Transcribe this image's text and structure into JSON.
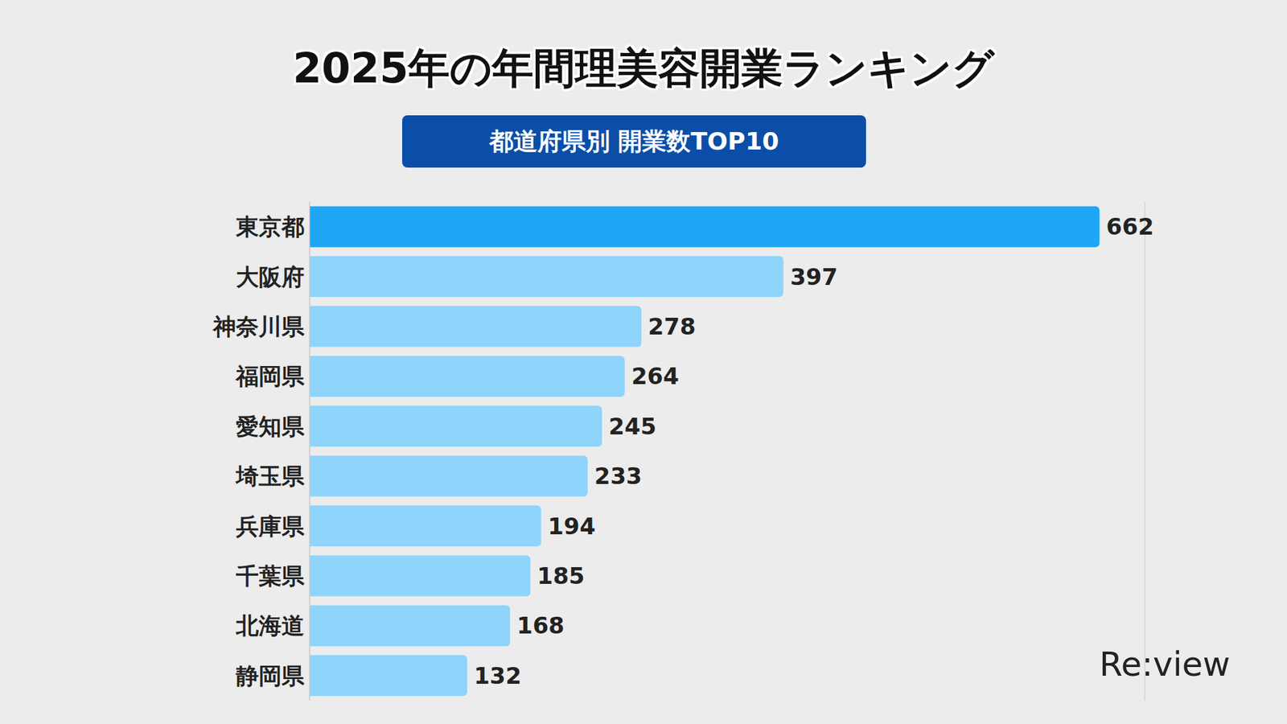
{
  "chart_data": {
    "type": "bar",
    "orientation": "horizontal",
    "title": "2025年の年間理美容開業ランキング",
    "subtitle": "都道府県別 開業数TOP10",
    "annotation": "Re:view",
    "categories": [
      "東京都",
      "大阪府",
      "神奈川県",
      "福岡県",
      "愛知県",
      "埼玉県",
      "兵庫県",
      "千葉県",
      "北海道",
      "静岡県"
    ],
    "values": [
      662,
      397,
      278,
      264,
      245,
      233,
      194,
      185,
      168,
      132
    ],
    "colors": [
      "#1ea7f4",
      "#8fd4fb",
      "#8fd4fb",
      "#8fd4fb",
      "#8fd4fb",
      "#8fd4fb",
      "#8fd4fb",
      "#8fd4fb",
      "#8fd4fb",
      "#8fd4fb"
    ],
    "xlim": [
      0,
      700
    ],
    "xticks": [
      0,
      100,
      200,
      300,
      400,
      500,
      600,
      700
    ],
    "grid": true,
    "tick_labels": "y",
    "data_labels": true
  }
}
